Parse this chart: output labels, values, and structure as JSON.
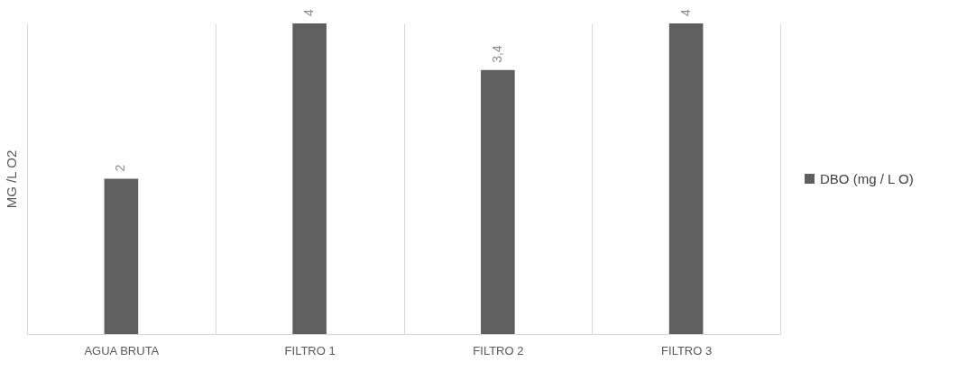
{
  "chart_data": {
    "type": "bar",
    "ylabel": "MG /L O2",
    "categories": [
      "AGUA BRUTA",
      "FILTRO 1",
      "FILTRO 2",
      "FILTRO 3"
    ],
    "series": [
      {
        "name": "DBO (mg / L O)",
        "color": "#5f5f5f",
        "values": [
          2,
          4,
          3.4,
          4
        ],
        "value_labels": [
          "2",
          "4",
          "3,4",
          "4"
        ]
      }
    ],
    "tick_labels": "x",
    "grid": "x",
    "legend": "right"
  }
}
